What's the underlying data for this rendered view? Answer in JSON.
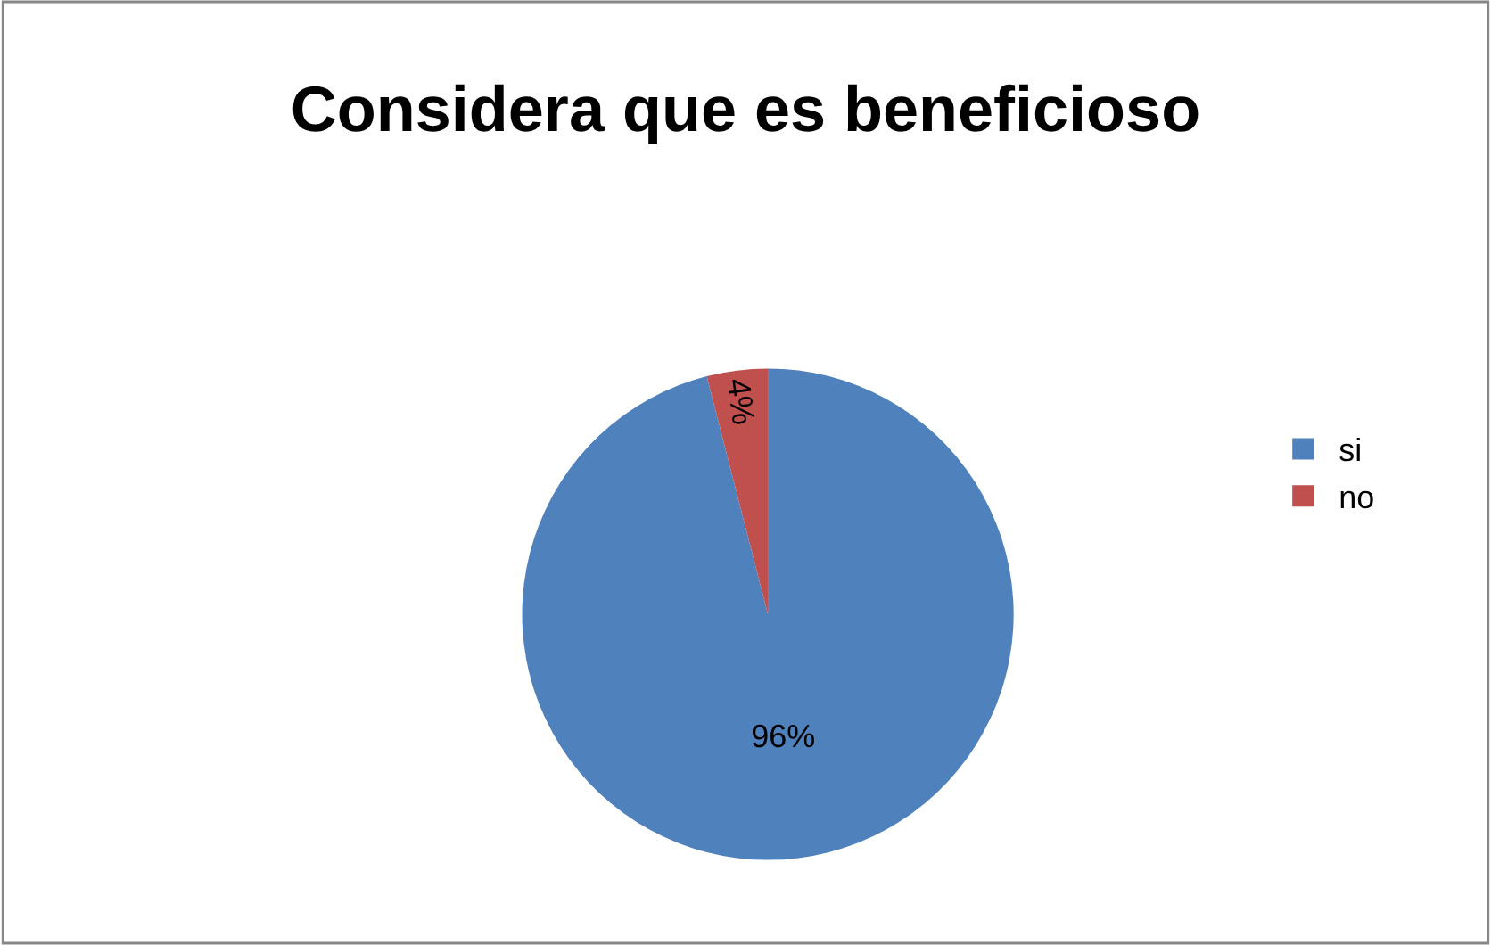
{
  "chart_data": {
    "type": "pie",
    "title": "Considera que es beneficioso",
    "categories": [
      "si",
      "no"
    ],
    "values": [
      96,
      4
    ],
    "colors": [
      "#4f81bd",
      "#c0504d"
    ],
    "value_labels": [
      "96%",
      "4%"
    ],
    "legend": "right"
  }
}
